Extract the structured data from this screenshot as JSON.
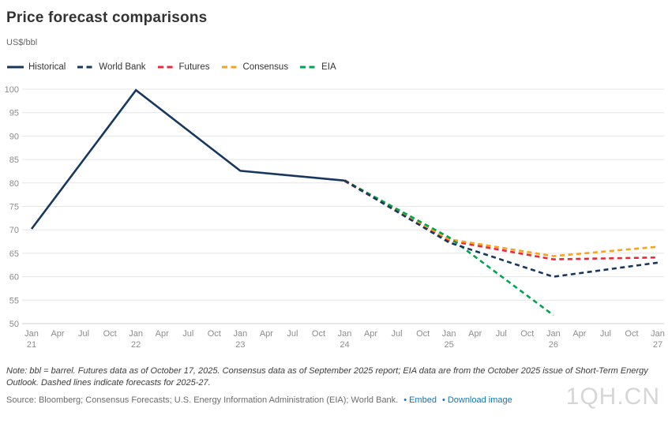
{
  "header": {
    "title": "Price forecast comparisons",
    "unit_label": "US$/bbl"
  },
  "legend": [
    {
      "label": "Historical",
      "color": "#17375e",
      "dashed": false
    },
    {
      "label": "World Bank",
      "color": "#17375e",
      "dashed": true
    },
    {
      "label": "Futures",
      "color": "#ea2839",
      "dashed": true
    },
    {
      "label": "Consensus",
      "color": "#f9a21b",
      "dashed": true
    },
    {
      "label": "EIA",
      "color": "#00a44f",
      "dashed": true
    }
  ],
  "chart_data": {
    "type": "line",
    "title": "Price forecast comparisons",
    "ylabel": "US$/bbl",
    "xlim": [
      2021,
      2027
    ],
    "ylim": [
      50,
      100
    ],
    "grid": "horizontal",
    "legend_position": "top-left",
    "y_ticks": [
      100,
      95,
      90,
      85,
      80,
      75,
      70,
      65,
      60,
      55,
      50
    ],
    "x_ticks": [
      {
        "pos": 2021.0,
        "month": "Jan",
        "year": "21"
      },
      {
        "pos": 2021.25,
        "month": "Apr"
      },
      {
        "pos": 2021.5,
        "month": "Jul"
      },
      {
        "pos": 2021.75,
        "month": "Oct"
      },
      {
        "pos": 2022.0,
        "month": "Jan",
        "year": "22"
      },
      {
        "pos": 2022.25,
        "month": "Apr"
      },
      {
        "pos": 2022.5,
        "month": "Jul"
      },
      {
        "pos": 2022.75,
        "month": "Oct"
      },
      {
        "pos": 2023.0,
        "month": "Jan",
        "year": "23"
      },
      {
        "pos": 2023.25,
        "month": "Apr"
      },
      {
        "pos": 2023.5,
        "month": "Jul"
      },
      {
        "pos": 2023.75,
        "month": "Oct"
      },
      {
        "pos": 2024.0,
        "month": "Jan",
        "year": "24"
      },
      {
        "pos": 2024.25,
        "month": "Apr"
      },
      {
        "pos": 2024.5,
        "month": "Jul"
      },
      {
        "pos": 2024.75,
        "month": "Oct"
      },
      {
        "pos": 2025.0,
        "month": "Jan",
        "year": "25"
      },
      {
        "pos": 2025.25,
        "month": "Apr"
      },
      {
        "pos": 2025.5,
        "month": "Jul"
      },
      {
        "pos": 2025.75,
        "month": "Oct"
      },
      {
        "pos": 2026.0,
        "month": "Jan",
        "year": "26"
      },
      {
        "pos": 2026.25,
        "month": "Apr"
      },
      {
        "pos": 2026.5,
        "month": "Jul"
      },
      {
        "pos": 2026.75,
        "month": "Oct"
      },
      {
        "pos": 2027.0,
        "month": "Jan",
        "year": "27"
      }
    ],
    "series": [
      {
        "name": "Futures",
        "color": "#ea2839",
        "dashed": true,
        "points": [
          [
            2024,
            80.4
          ],
          [
            2025,
            67.7
          ],
          [
            2026,
            63.7
          ],
          [
            2027,
            64.1
          ]
        ]
      },
      {
        "name": "Consensus",
        "color": "#f9a21b",
        "dashed": true,
        "points": [
          [
            2024,
            80.6
          ],
          [
            2025,
            68.0
          ],
          [
            2026,
            64.4
          ],
          [
            2027,
            66.4
          ]
        ]
      },
      {
        "name": "EIA",
        "color": "#00a44f",
        "dashed": true,
        "points": [
          [
            2024,
            80.5
          ],
          [
            2025,
            68.4
          ],
          [
            2026,
            51.8
          ]
        ]
      },
      {
        "name": "World Bank",
        "color": "#17375e",
        "dashed": true,
        "points": [
          [
            2024,
            80.5
          ],
          [
            2025,
            67.3
          ],
          [
            2026,
            60.0
          ],
          [
            2027,
            63.0
          ]
        ]
      },
      {
        "name": "Historical",
        "color": "#17375e",
        "dashed": false,
        "points": [
          [
            2021,
            70.2
          ],
          [
            2022,
            99.8
          ],
          [
            2023,
            82.6
          ],
          [
            2024,
            80.5
          ]
        ]
      }
    ]
  },
  "footer": {
    "note": "Note: bbl = barrel. Futures data as of October 17, 2025. Consensus data as of September 2025 report; EIA data are from the October 2025 issue of Short-Term Energy Outlook. Dashed lines indicate forecasts for 2025-27.",
    "source": "Source: Bloomberg; Consensus Forecasts; U.S. Energy Information Administration (EIA); World Bank.",
    "embed_label": "Embed",
    "download_label": "Download image",
    "watermark": "1QH.CN"
  },
  "colors": {
    "grid": "#e5e5e5",
    "axis_bottom": "#cfcfcf",
    "tick_label": "#8c8c8c",
    "link": "#0e76bd"
  }
}
